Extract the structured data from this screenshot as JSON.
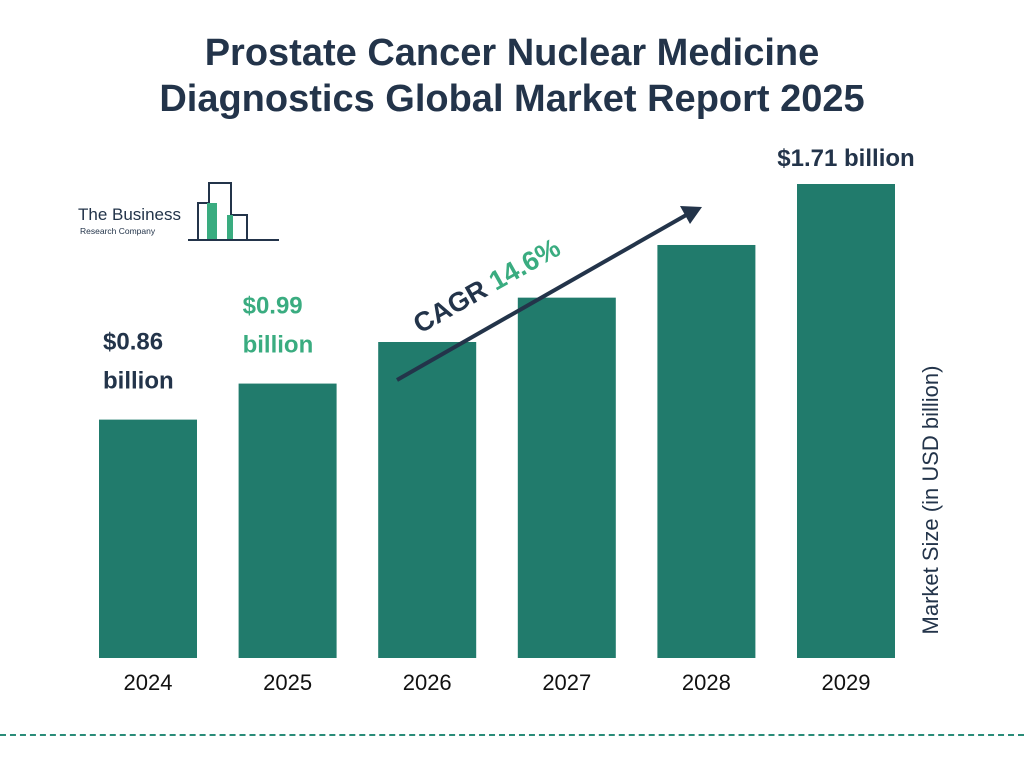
{
  "title_line1": "Prostate Cancer Nuclear Medicine",
  "title_line2": "Diagnostics Global Market Report 2025",
  "logo": {
    "name": "The Business",
    "subname": "Research Company",
    "icon": "bar-building-logo-icon"
  },
  "colors": {
    "bar": "#217b6c",
    "title": "#23344a",
    "highlight": "#3aac80",
    "divider": "#2a8c78"
  },
  "cagr": {
    "label": "CAGR",
    "value": "14.6%"
  },
  "chart_data": {
    "type": "bar",
    "title": "Prostate Cancer Nuclear Medicine Diagnostics Global Market Report 2025",
    "ylabel": "Market Size (in USD billion)",
    "xlabel": "",
    "categories": [
      "2024",
      "2025",
      "2026",
      "2027",
      "2028",
      "2029"
    ],
    "values": [
      0.86,
      0.99,
      1.14,
      1.3,
      1.49,
      1.71
    ],
    "ylim": [
      0,
      1.71
    ],
    "grid": false,
    "legend": "none",
    "data_labels": [
      {
        "index": 0,
        "line1": "$0.86",
        "line2": "billion",
        "highlight": false
      },
      {
        "index": 1,
        "line1": "$0.99",
        "line2": "billion",
        "highlight": true
      },
      {
        "index": 5,
        "line1": "$1.71 billion",
        "line2": "",
        "highlight": false
      }
    ]
  }
}
